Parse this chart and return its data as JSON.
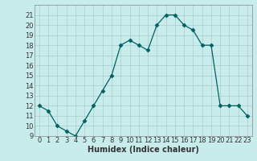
{
  "xlabel": "Humidex (Indice chaleur)",
  "x": [
    0,
    1,
    2,
    3,
    4,
    5,
    6,
    7,
    8,
    9,
    10,
    11,
    12,
    13,
    14,
    15,
    16,
    17,
    18,
    19,
    20,
    21,
    22,
    23
  ],
  "y": [
    12,
    11.5,
    10,
    9.5,
    9,
    10.5,
    12,
    13.5,
    15,
    18,
    18.5,
    18,
    17.5,
    20,
    21,
    21,
    20,
    19.5,
    18,
    18,
    12,
    12,
    12,
    11
  ],
  "line_color": "#006060",
  "marker": "D",
  "marker_size": 2.5,
  "bg_color": "#c8ecec",
  "grid_color": "#aacccc",
  "tick_color": "#333333",
  "ylim": [
    9,
    22
  ],
  "xlim": [
    -0.5,
    23.5
  ],
  "yticks": [
    9,
    10,
    11,
    12,
    13,
    14,
    15,
    16,
    17,
    18,
    19,
    20,
    21
  ],
  "xticks": [
    0,
    1,
    2,
    3,
    4,
    5,
    6,
    7,
    8,
    9,
    10,
    11,
    12,
    13,
    14,
    15,
    16,
    17,
    18,
    19,
    20,
    21,
    22,
    23
  ],
  "title_fontsize": 6.5,
  "label_fontsize": 7,
  "tick_fontsize": 6
}
